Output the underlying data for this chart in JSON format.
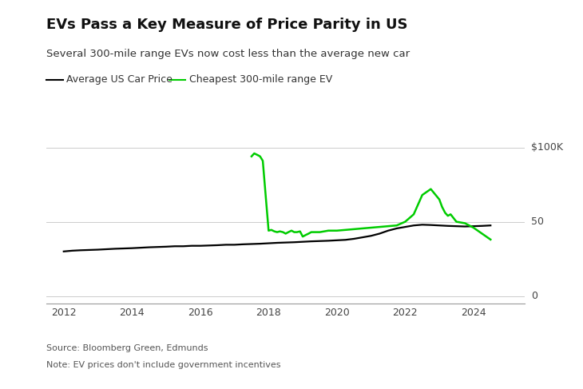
{
  "title": "EVs Pass a Key Measure of Price Parity in US",
  "subtitle": "Several 300-mile range EVs now cost less than the average new car",
  "legend_labels": [
    "Average US Car Price",
    "Cheapest 300-mile range EV"
  ],
  "legend_colors": [
    "#000000",
    "#00cc00"
  ],
  "source": "Source: Bloomberg Green, Edmunds",
  "note": "Note: EV prices don't include government incentives",
  "background_color": "#ffffff",
  "avg_car": {
    "x": [
      2012.0,
      2012.25,
      2012.5,
      2012.75,
      2013.0,
      2013.25,
      2013.5,
      2013.75,
      2014.0,
      2014.25,
      2014.5,
      2014.75,
      2015.0,
      2015.25,
      2015.5,
      2015.75,
      2016.0,
      2016.25,
      2016.5,
      2016.75,
      2017.0,
      2017.25,
      2017.5,
      2017.75,
      2018.0,
      2018.25,
      2018.5,
      2018.75,
      2019.0,
      2019.25,
      2019.5,
      2019.75,
      2020.0,
      2020.25,
      2020.5,
      2020.75,
      2021.0,
      2021.25,
      2021.5,
      2021.75,
      2022.0,
      2022.25,
      2022.5,
      2022.75,
      2023.0,
      2023.25,
      2023.5,
      2023.75,
      2024.0,
      2024.25,
      2024.5
    ],
    "y": [
      30,
      30.5,
      30.8,
      31.0,
      31.2,
      31.5,
      31.8,
      32.0,
      32.2,
      32.5,
      32.8,
      33.0,
      33.2,
      33.5,
      33.5,
      33.8,
      33.8,
      34.0,
      34.2,
      34.5,
      34.5,
      34.8,
      35.0,
      35.2,
      35.5,
      35.8,
      36.0,
      36.2,
      36.5,
      36.8,
      37.0,
      37.2,
      37.5,
      37.8,
      38.5,
      39.5,
      40.5,
      42.0,
      44.0,
      45.5,
      46.5,
      47.5,
      48.0,
      47.8,
      47.5,
      47.2,
      47.0,
      46.8,
      47.0,
      47.2,
      47.5
    ]
  },
  "cheapest_ev": {
    "x": [
      2017.5,
      2017.58,
      2017.67,
      2017.75,
      2017.83,
      2017.92,
      2018.0,
      2018.08,
      2018.17,
      2018.25,
      2018.33,
      2018.42,
      2018.5,
      2018.58,
      2018.67,
      2018.75,
      2018.83,
      2018.92,
      2019.0,
      2019.08,
      2019.17,
      2019.25,
      2019.5,
      2019.75,
      2020.0,
      2020.25,
      2020.5,
      2020.75,
      2021.0,
      2021.25,
      2021.5,
      2021.75,
      2022.0,
      2022.25,
      2022.5,
      2022.75,
      2023.0,
      2023.08,
      2023.17,
      2023.25,
      2023.33,
      2023.5,
      2023.75,
      2024.0,
      2024.25,
      2024.5
    ],
    "y": [
      94,
      96,
      95,
      94,
      91,
      66,
      44,
      44.5,
      43.5,
      43,
      43.5,
      43,
      42,
      43,
      44,
      43,
      43,
      43.5,
      40,
      41,
      42,
      43,
      43,
      44,
      44,
      44.5,
      45,
      45.5,
      46,
      46.5,
      47,
      47.5,
      50,
      55,
      68,
      72,
      65,
      60,
      56,
      54,
      55,
      50,
      49,
      46,
      42,
      38
    ]
  },
  "xlim": [
    2011.5,
    2025.5
  ],
  "ylim": [
    -5,
    105
  ],
  "xticks": [
    2012,
    2014,
    2016,
    2018,
    2020,
    2022,
    2024
  ],
  "ytick_vals": [
    0,
    50,
    100
  ],
  "ytick_right_labels": [
    "0",
    "50",
    "$100K"
  ]
}
